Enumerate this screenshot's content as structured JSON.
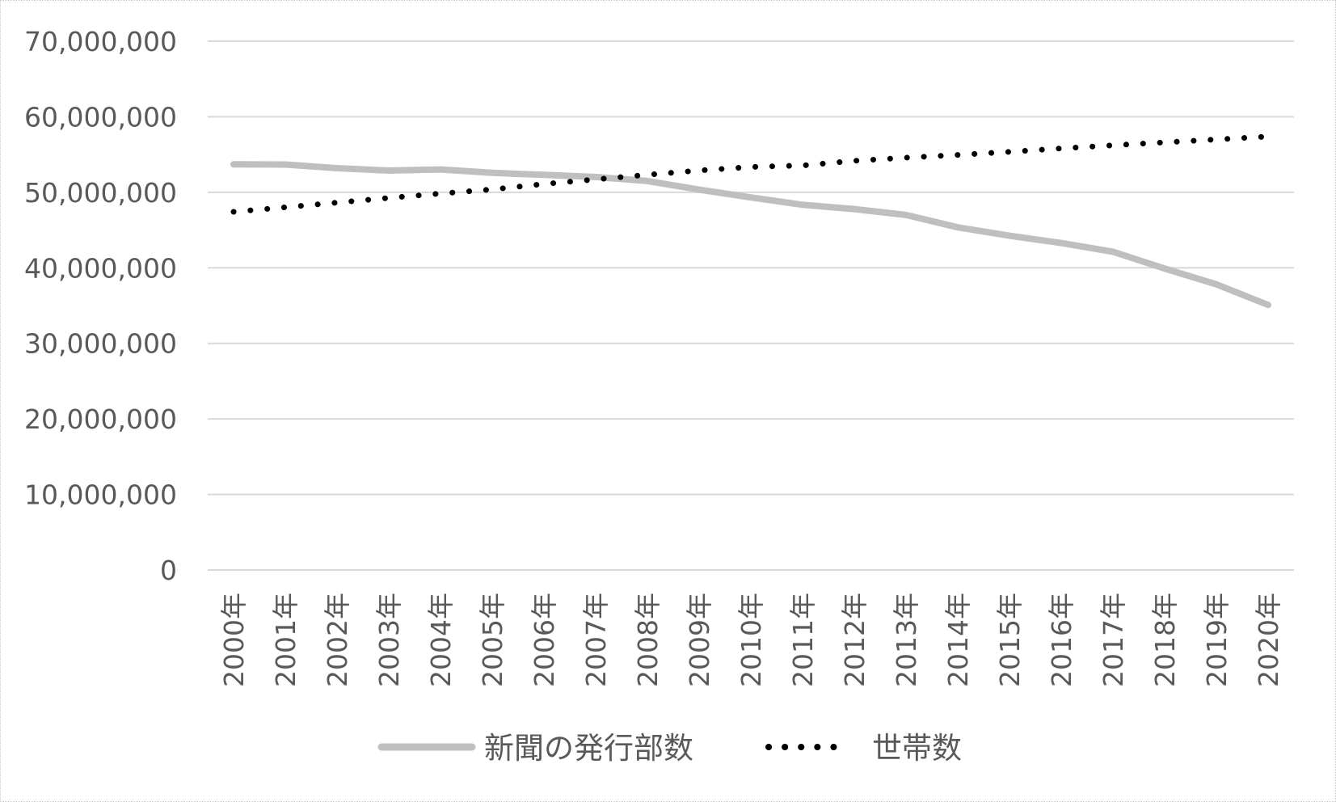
{
  "chart_data": {
    "type": "line",
    "categories": [
      "2000年",
      "2001年",
      "2002年",
      "2003年",
      "2004年",
      "2005年",
      "2006年",
      "2007年",
      "2008年",
      "2009年",
      "2010年",
      "2011年",
      "2012年",
      "2013年",
      "2014年",
      "2015年",
      "2016年",
      "2017年",
      "2018年",
      "2019年",
      "2020年"
    ],
    "series": [
      {
        "name": "新聞の発行部数",
        "color": "#bfbfbf",
        "style": "solid",
        "values": [
          53700000,
          53680000,
          53200000,
          52870000,
          53020000,
          52570000,
          52310000,
          52030000,
          51490000,
          50350000,
          49320000,
          48350000,
          47780000,
          47000000,
          45360000,
          44250000,
          43280000,
          42130000,
          39900000,
          37810000,
          35090000
        ]
      },
      {
        "name": "世帯数",
        "color": "#000000",
        "style": "dotted",
        "values": [
          47420000,
          48020000,
          48640000,
          49260000,
          49840000,
          50380000,
          51100000,
          51710000,
          52320000,
          52880000,
          53360000,
          53550000,
          54170000,
          54590000,
          54950000,
          55360000,
          55810000,
          56220000,
          56610000,
          57000000,
          57380000
        ]
      }
    ],
    "yticks": [
      "0",
      "10,000,000",
      "20,000,000",
      "30,000,000",
      "40,000,000",
      "50,000,000",
      "60,000,000",
      "70,000,000"
    ],
    "ylim": [
      0,
      70000000
    ],
    "grid": true,
    "legend": "bottom",
    "title": "",
    "xlabel": "",
    "ylabel": ""
  }
}
